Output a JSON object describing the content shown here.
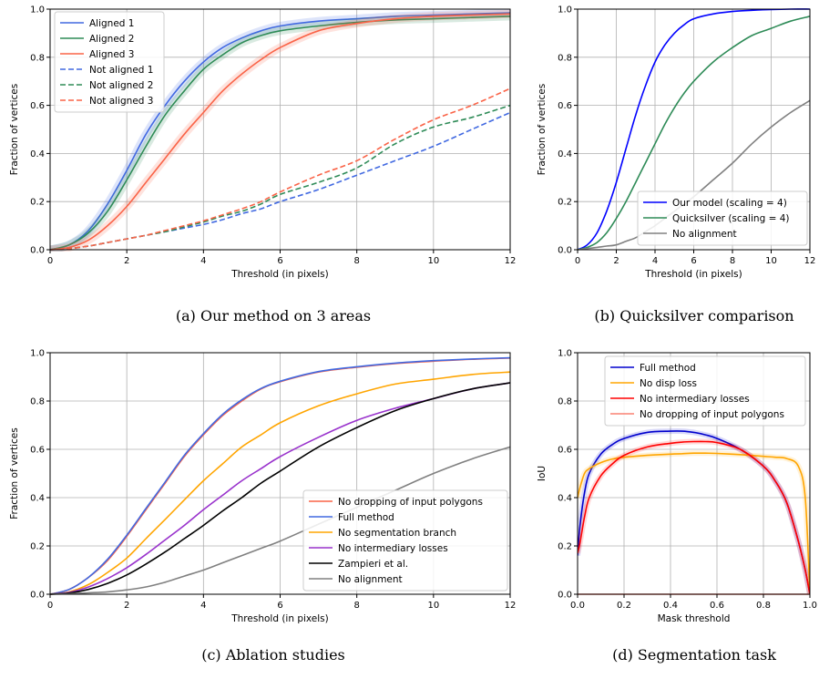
{
  "chart_data": [
    {
      "id": "a",
      "type": "line",
      "caption": "(a) Our method on 3 areas",
      "xlabel": "Threshold (in pixels)",
      "ylabel": "Fraction of vertices",
      "xlim": [
        0,
        12
      ],
      "ylim": [
        0,
        1.0
      ],
      "xticks": [
        0,
        2,
        4,
        6,
        8,
        10,
        12
      ],
      "yticks": [
        0.0,
        0.2,
        0.4,
        0.6,
        0.8,
        1.0
      ],
      "grid": true,
      "legend": "top-left",
      "x": [
        0,
        0.5,
        1,
        1.5,
        2,
        2.5,
        3,
        3.5,
        4,
        4.5,
        5,
        5.5,
        6,
        7,
        8,
        9,
        10,
        11,
        12
      ],
      "series": [
        {
          "name": "Aligned 1",
          "color": "#4169e1",
          "dash": false,
          "values": [
            0,
            0.02,
            0.08,
            0.19,
            0.33,
            0.48,
            0.6,
            0.7,
            0.78,
            0.84,
            0.88,
            0.91,
            0.93,
            0.95,
            0.96,
            0.97,
            0.975,
            0.98,
            0.985
          ]
        },
        {
          "name": "Aligned 2",
          "color": "#2e8b57",
          "dash": false,
          "values": [
            0,
            0.02,
            0.07,
            0.16,
            0.29,
            0.43,
            0.56,
            0.66,
            0.75,
            0.81,
            0.86,
            0.89,
            0.91,
            0.93,
            0.945,
            0.955,
            0.96,
            0.965,
            0.97
          ]
        },
        {
          "name": "Aligned 3",
          "color": "#fa6347",
          "dash": false,
          "values": [
            0,
            0.01,
            0.04,
            0.1,
            0.18,
            0.28,
            0.38,
            0.48,
            0.57,
            0.66,
            0.73,
            0.79,
            0.84,
            0.91,
            0.94,
            0.96,
            0.97,
            0.975,
            0.98
          ]
        },
        {
          "name": "Not aligned 1",
          "color": "#4169e1",
          "dash": true,
          "values": [
            0,
            0.005,
            0.015,
            0.03,
            0.045,
            0.06,
            0.075,
            0.09,
            0.105,
            0.125,
            0.15,
            0.17,
            0.2,
            0.25,
            0.31,
            0.37,
            0.43,
            0.5,
            0.57
          ]
        },
        {
          "name": "Not aligned 2",
          "color": "#2e8b57",
          "dash": true,
          "values": [
            0,
            0.005,
            0.015,
            0.03,
            0.045,
            0.06,
            0.075,
            0.095,
            0.115,
            0.14,
            0.16,
            0.19,
            0.23,
            0.28,
            0.34,
            0.44,
            0.51,
            0.55,
            0.6
          ]
        },
        {
          "name": "Not aligned 3",
          "color": "#fa6347",
          "dash": true,
          "values": [
            0,
            0.005,
            0.015,
            0.03,
            0.045,
            0.06,
            0.08,
            0.1,
            0.12,
            0.145,
            0.17,
            0.2,
            0.24,
            0.31,
            0.37,
            0.46,
            0.54,
            0.6,
            0.67
          ]
        }
      ]
    },
    {
      "id": "b",
      "type": "line",
      "caption": "(b) Quicksilver comparison",
      "xlabel": "Threshold (in pixels)",
      "ylabel": "Fraction of vertices",
      "xlim": [
        0,
        12
      ],
      "ylim": [
        0,
        1.0
      ],
      "xticks": [
        0,
        2,
        4,
        6,
        8,
        10,
        12
      ],
      "yticks": [
        0.0,
        0.2,
        0.4,
        0.6,
        0.8,
        1.0
      ],
      "grid": true,
      "legend": "bottom-right",
      "x": [
        0,
        0.5,
        1,
        1.5,
        2,
        2.5,
        3,
        3.5,
        4,
        4.5,
        5,
        5.5,
        6,
        7,
        8,
        9,
        10,
        11,
        12
      ],
      "series": [
        {
          "name": "Our model (scaling = 4)",
          "color": "#0000ff",
          "values": [
            0,
            0.02,
            0.07,
            0.16,
            0.28,
            0.42,
            0.56,
            0.68,
            0.78,
            0.85,
            0.9,
            0.935,
            0.96,
            0.98,
            0.99,
            0.995,
            0.998,
            1.0,
            1.0
          ]
        },
        {
          "name": "Quicksilver (scaling = 4)",
          "color": "#2e8b57",
          "values": [
            0,
            0.01,
            0.03,
            0.07,
            0.13,
            0.2,
            0.28,
            0.36,
            0.44,
            0.52,
            0.59,
            0.65,
            0.7,
            0.78,
            0.84,
            0.89,
            0.92,
            0.95,
            0.97
          ]
        },
        {
          "name": "No alignment",
          "color": "#808080",
          "values": [
            0,
            0.005,
            0.01,
            0.015,
            0.02,
            0.035,
            0.05,
            0.075,
            0.1,
            0.13,
            0.16,
            0.19,
            0.22,
            0.29,
            0.36,
            0.44,
            0.51,
            0.57,
            0.62
          ]
        }
      ]
    },
    {
      "id": "c",
      "type": "line",
      "caption": "(c) Ablation studies",
      "xlabel": "Threshold (in pixels)",
      "ylabel": "Fraction of vertices",
      "xlim": [
        0,
        12
      ],
      "ylim": [
        0,
        1.0
      ],
      "xticks": [
        0,
        2,
        4,
        6,
        8,
        10,
        12
      ],
      "yticks": [
        0.0,
        0.2,
        0.4,
        0.6,
        0.8,
        1.0
      ],
      "grid": true,
      "legend": "bottom-right",
      "x": [
        0,
        0.5,
        1,
        1.5,
        2,
        2.5,
        3,
        3.5,
        4,
        4.5,
        5,
        5.5,
        6,
        7,
        8,
        9,
        10,
        11,
        12
      ],
      "series": [
        {
          "name": "No dropping of input polygons",
          "color": "#fa6347",
          "values": [
            0,
            0.02,
            0.07,
            0.14,
            0.24,
            0.35,
            0.46,
            0.57,
            0.66,
            0.74,
            0.8,
            0.85,
            0.88,
            0.92,
            0.94,
            0.955,
            0.965,
            0.973,
            0.978
          ]
        },
        {
          "name": "Full method",
          "color": "#4169e1",
          "values": [
            0,
            0.02,
            0.07,
            0.145,
            0.245,
            0.355,
            0.465,
            0.575,
            0.665,
            0.745,
            0.805,
            0.852,
            0.882,
            0.922,
            0.942,
            0.957,
            0.967,
            0.974,
            0.979
          ]
        },
        {
          "name": "No segmentation branch",
          "color": "#ffa500",
          "values": [
            0,
            0.01,
            0.04,
            0.09,
            0.15,
            0.23,
            0.31,
            0.39,
            0.47,
            0.54,
            0.61,
            0.66,
            0.71,
            0.78,
            0.83,
            0.87,
            0.89,
            0.91,
            0.92
          ]
        },
        {
          "name": "No intermediary losses",
          "color": "#9932cc",
          "values": [
            0,
            0.008,
            0.03,
            0.065,
            0.11,
            0.165,
            0.225,
            0.285,
            0.35,
            0.41,
            0.47,
            0.52,
            0.57,
            0.65,
            0.72,
            0.77,
            0.81,
            0.85,
            0.875
          ]
        },
        {
          "name": "Zampieri et al.",
          "color": "#000000",
          "values": [
            0,
            0.005,
            0.02,
            0.045,
            0.08,
            0.125,
            0.175,
            0.23,
            0.285,
            0.345,
            0.4,
            0.46,
            0.51,
            0.61,
            0.69,
            0.76,
            0.81,
            0.85,
            0.875
          ]
        },
        {
          "name": "No alignment",
          "color": "#808080",
          "values": [
            0,
            0.002,
            0.006,
            0.01,
            0.018,
            0.03,
            0.05,
            0.075,
            0.1,
            0.13,
            0.16,
            0.19,
            0.22,
            0.29,
            0.36,
            0.43,
            0.5,
            0.56,
            0.61
          ]
        }
      ]
    },
    {
      "id": "d",
      "type": "line",
      "caption": "(d) Segmentation task",
      "xlabel": "Mask threshold",
      "ylabel": "IoU",
      "xlim": [
        0,
        1.0
      ],
      "ylim": [
        0,
        1.0
      ],
      "xticks": [
        0.0,
        0.2,
        0.4,
        0.6,
        0.8,
        1.0
      ],
      "yticks": [
        0.0,
        0.2,
        0.4,
        0.6,
        0.8,
        1.0
      ],
      "grid": true,
      "legend": "top-center",
      "x": [
        0,
        0.01,
        0.03,
        0.05,
        0.1,
        0.15,
        0.2,
        0.3,
        0.4,
        0.45,
        0.5,
        0.55,
        0.6,
        0.7,
        0.8,
        0.85,
        0.9,
        0.95,
        0.98,
        1.0
      ],
      "series": [
        {
          "name": "Full method",
          "color": "#0000cd",
          "values": [
            0.16,
            0.28,
            0.42,
            0.5,
            0.58,
            0.62,
            0.645,
            0.67,
            0.675,
            0.675,
            0.67,
            0.66,
            0.645,
            0.6,
            0.53,
            0.47,
            0.38,
            0.22,
            0.1,
            0.0
          ]
        },
        {
          "name": "No disp loss",
          "color": "#ffa500",
          "values": [
            0.4,
            0.44,
            0.5,
            0.52,
            0.545,
            0.56,
            0.567,
            0.575,
            0.58,
            0.582,
            0.584,
            0.584,
            0.583,
            0.578,
            0.571,
            0.567,
            0.562,
            0.53,
            0.4,
            0.0
          ]
        },
        {
          "name": "No intermediary losses",
          "color": "#ff0000",
          "values": [
            0.17,
            0.21,
            0.32,
            0.4,
            0.49,
            0.54,
            0.575,
            0.61,
            0.625,
            0.63,
            0.632,
            0.632,
            0.628,
            0.6,
            0.53,
            0.47,
            0.38,
            0.22,
            0.1,
            0.0
          ]
        },
        {
          "name": "No dropping of input polygons",
          "color": "#fa8072",
          "values": [
            0.0,
            0.0,
            0.0,
            0.0,
            0.0,
            0.0,
            0.0,
            0.0,
            0.0,
            0.0,
            0.0,
            0.0,
            0.0,
            0.0,
            0.0,
            0.0,
            0.0,
            0.0,
            0.0,
            0.0
          ]
        }
      ]
    }
  ]
}
